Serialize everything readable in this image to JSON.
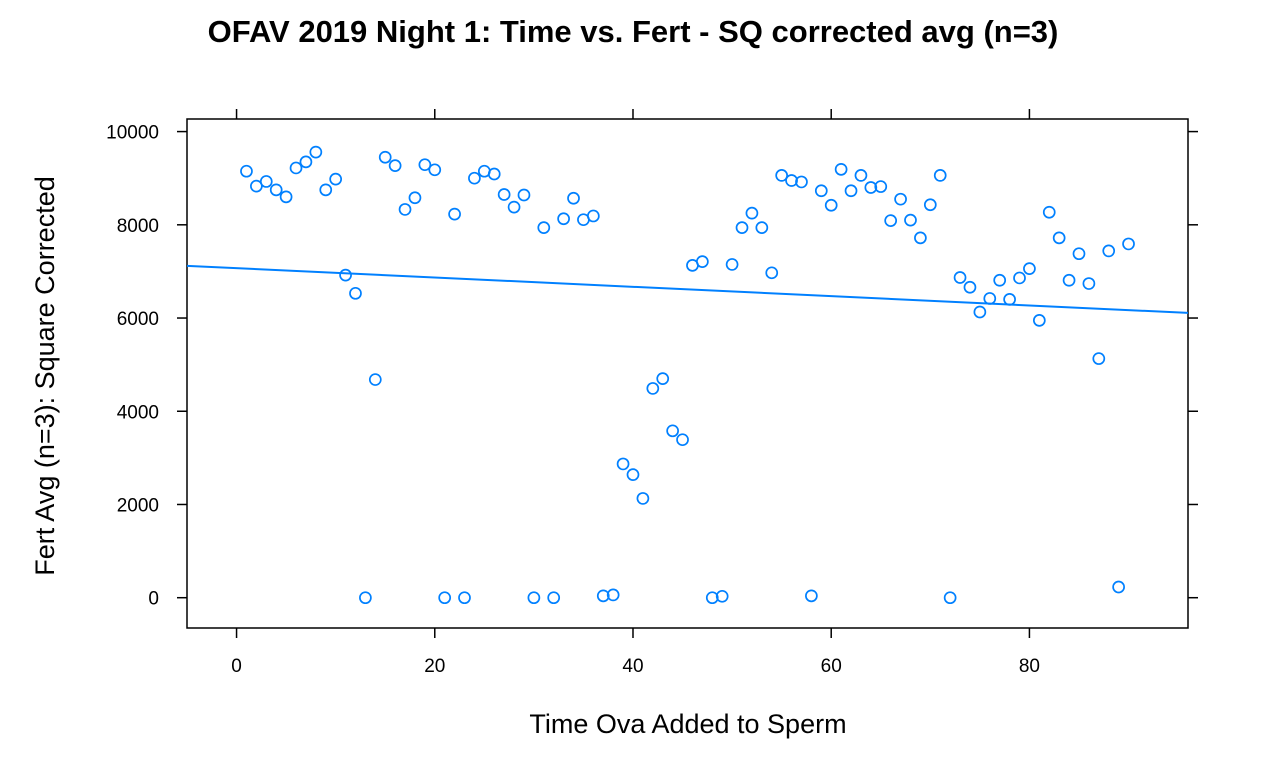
{
  "chart_data": {
    "type": "scatter",
    "title": "OFAV 2019 Night 1: Time vs. Fert - SQ corrected avg (n=3)",
    "xlabel": "Time Ova Added to Sperm",
    "ylabel": "Fert Avg (n=3): Square Corrected",
    "xlim": [
      -5,
      96
    ],
    "ylim": [
      -650,
      10270
    ],
    "x_ticks": [
      0,
      20,
      40,
      60,
      80
    ],
    "x_tick_labels": [
      "0",
      "20",
      "40",
      "60",
      "80"
    ],
    "y_ticks": [
      0,
      2000,
      4000,
      6000,
      8000,
      10000
    ],
    "y_tick_labels": [
      "0",
      "2000",
      "4000",
      "6000",
      "8000",
      "10000"
    ],
    "grid": false,
    "marker_color": "#0080ff",
    "line_color": "#0080ff",
    "regression_line": {
      "x": [
        -5,
        96
      ],
      "y": [
        7120,
        6110
      ]
    },
    "points": {
      "x": [
        1,
        2,
        3,
        4,
        5,
        6,
        7,
        8,
        9,
        10,
        11,
        12,
        13,
        14,
        15,
        16,
        17,
        18,
        19,
        20,
        21,
        22,
        23,
        24,
        25,
        26,
        27,
        28,
        29,
        30,
        31,
        32,
        33,
        34,
        35,
        36,
        37,
        38,
        39,
        40,
        41,
        42,
        43,
        44,
        45,
        46,
        47,
        48,
        49,
        50,
        51,
        52,
        53,
        54,
        55,
        56,
        57,
        58,
        59,
        60,
        61,
        62,
        63,
        64,
        65,
        66,
        67,
        68,
        69,
        70,
        71,
        72,
        73,
        74,
        75,
        76,
        77,
        78,
        79,
        80,
        81,
        82,
        83,
        84,
        85,
        86,
        87,
        88,
        89,
        90
      ],
      "y": [
        9150,
        8830,
        8930,
        8750,
        8600,
        9220,
        9350,
        9560,
        8750,
        8980,
        6920,
        6530,
        0,
        4680,
        9450,
        9270,
        8330,
        8580,
        9290,
        9180,
        0,
        8230,
        0,
        9000,
        9150,
        9090,
        8650,
        8380,
        8640,
        0,
        7940,
        0,
        8130,
        8570,
        8110,
        8190,
        40,
        60,
        2870,
        2640,
        2130,
        4490,
        4700,
        3580,
        3390,
        7130,
        7210,
        0,
        30,
        7150,
        7940,
        8250,
        7940,
        6970,
        9060,
        8950,
        8920,
        40,
        8730,
        8420,
        9190,
        8730,
        9060,
        8800,
        8820,
        8090,
        8550,
        8100,
        7720,
        8430,
        9060,
        0,
        6870,
        6660,
        6130,
        6420,
        6810,
        6400,
        6860,
        7060,
        5950,
        8270,
        7720,
        6810,
        7380,
        6740,
        5130,
        7440,
        230,
        7590
      ]
    }
  }
}
